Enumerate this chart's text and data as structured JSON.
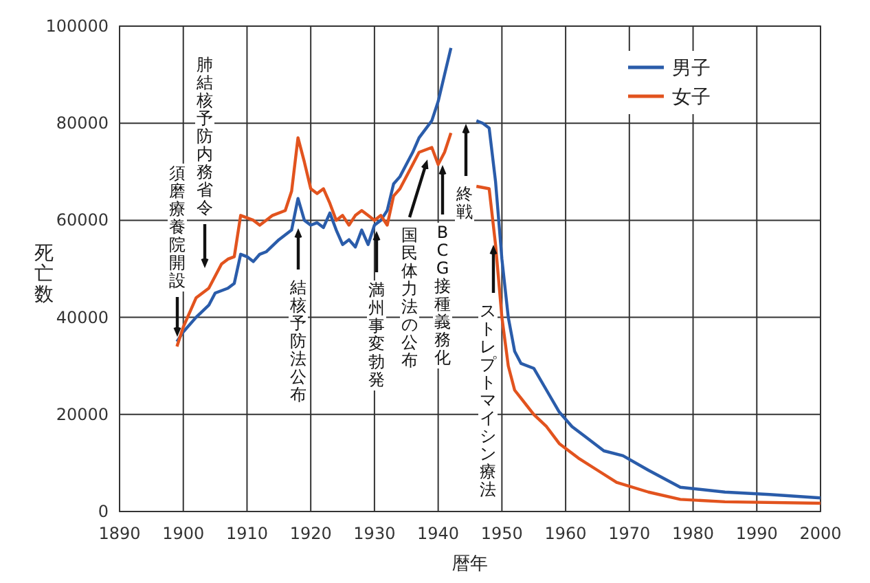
{
  "chart_data": {
    "type": "line",
    "xlabel": "暦年",
    "ylabel": "死亡数",
    "xlim": [
      1890,
      2000
    ],
    "xticks": [
      1890,
      1900,
      1910,
      1920,
      1930,
      1940,
      1950,
      1960,
      1970,
      1980,
      1990,
      2000
    ],
    "ylim": [
      0,
      100000
    ],
    "yticks": [
      0,
      20000,
      40000,
      60000,
      80000,
      100000
    ],
    "grid": true,
    "legend": "top right",
    "marker": "none",
    "line_style": "solid",
    "series": [
      {
        "name": "男子",
        "color": "#2a5caa",
        "x": [
          1899,
          1900,
          1902,
          1904,
          1905,
          1907,
          1908,
          1909,
          1910,
          1911,
          1912,
          1913,
          1915,
          1917,
          1918,
          1919,
          1920,
          1921,
          1922,
          1923,
          1924,
          1925,
          1926,
          1927,
          1928,
          1929,
          1930,
          1931,
          1932,
          1933,
          1934,
          1936,
          1937,
          1939,
          1940,
          1941,
          1942,
          1944,
          1946,
          1947,
          1948,
          1949,
          1950,
          1951,
          1952,
          1953,
          1955,
          1957,
          1959,
          1961,
          1963,
          1966,
          1969,
          1973,
          1978,
          1985,
          1992,
          2000
        ],
        "values": [
          35000,
          37000,
          40000,
          42500,
          45000,
          46000,
          47000,
          53000,
          52500,
          51500,
          53000,
          53500,
          56000,
          58000,
          64500,
          60000,
          59000,
          59500,
          58500,
          61500,
          58000,
          55000,
          56000,
          54500,
          58000,
          55000,
          59000,
          60000,
          62000,
          67500,
          69000,
          74000,
          77000,
          80500,
          84500,
          90000,
          95500,
          null,
          80500,
          80000,
          79000,
          68000,
          52000,
          40000,
          33000,
          30500,
          29500,
          25000,
          20500,
          17500,
          15500,
          12500,
          11500,
          8500,
          5000,
          4000,
          3500,
          2800
        ]
      },
      {
        "name": "女子",
        "color": "#e2531e",
        "x": [
          1899,
          1900,
          1902,
          1904,
          1906,
          1907,
          1908,
          1909,
          1911,
          1912,
          1913,
          1914,
          1916,
          1917,
          1918,
          1919,
          1920,
          1921,
          1922,
          1923,
          1924,
          1925,
          1926,
          1927,
          1928,
          1929,
          1930,
          1931,
          1932,
          1933,
          1934,
          1936,
          1937,
          1939,
          1940,
          1941,
          1942,
          1944,
          1946,
          1948,
          1949,
          1950,
          1951,
          1952,
          1955,
          1957,
          1959,
          1962,
          1965,
          1968,
          1973,
          1978,
          1985,
          2000
        ],
        "values": [
          34000,
          38000,
          44000,
          46000,
          51000,
          52000,
          52500,
          61000,
          60000,
          59000,
          60000,
          61000,
          62000,
          66000,
          77000,
          72000,
          66500,
          65500,
          66500,
          63500,
          60000,
          61000,
          59000,
          61000,
          62000,
          61000,
          60000,
          61000,
          59000,
          65000,
          66500,
          71500,
          74000,
          75000,
          71500,
          74000,
          78000,
          null,
          67000,
          66500,
          55000,
          40000,
          30000,
          25000,
          20000,
          17500,
          14000,
          11000,
          8500,
          6000,
          4000,
          2500,
          2000,
          1700
        ]
      }
    ],
    "annotations": [
      "須磨療養院開設",
      "肺結核予防内務省令",
      "結核予防法公布",
      "満州事変勃発",
      "国民体力法の公布",
      "BCG接種義務化",
      "終戦",
      "ストレプトマイシン療法"
    ]
  }
}
